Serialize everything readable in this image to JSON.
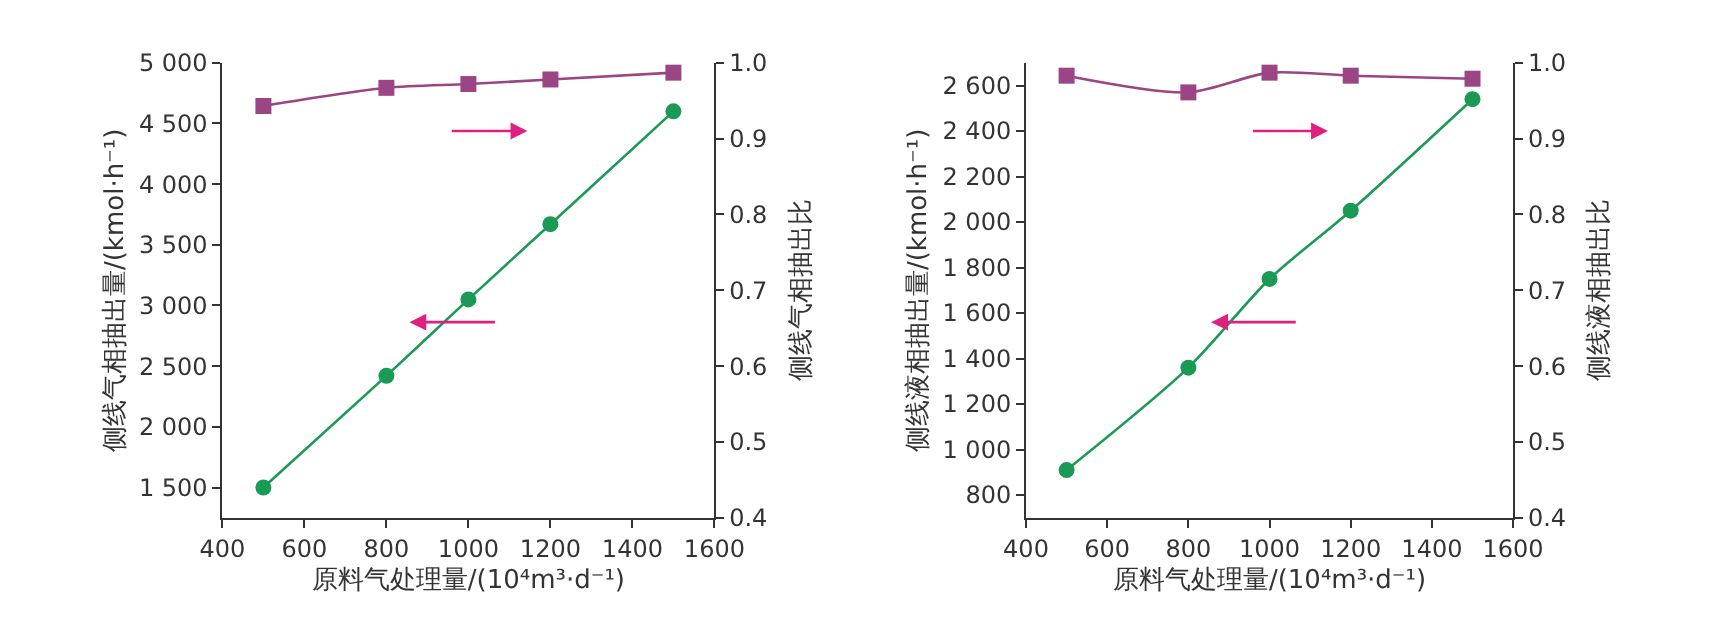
{
  "chart_data": [
    {
      "type": "line",
      "xlabel": "原料气处理量/(10⁴m³·d⁻¹)",
      "ylabel": "侧线气相抽出量/(kmol·h⁻¹)",
      "y2label": "侧线气相抽出比",
      "x": [
        500,
        800,
        1000,
        1200,
        1500
      ],
      "series": [
        {
          "color": "#1a9a55",
          "marker": "circle",
          "values": [
            1500,
            2420,
            3050,
            3670,
            4600
          ]
        },
        {
          "color": "#9b4585",
          "marker": "square",
          "axis": "y2",
          "values": [
            0.943,
            0.967,
            0.972,
            0.978,
            0.987
          ]
        }
      ],
      "xlim": [
        400,
        1600
      ],
      "xticks": [
        400,
        600,
        800,
        1000,
        1200,
        1400,
        1600
      ],
      "ylim": [
        1250,
        5000
      ],
      "yticks": [
        {
          "value": 1500,
          "label": "1 500"
        },
        {
          "value": 2000,
          "label": "2 000"
        },
        {
          "value": 2500,
          "label": "2 500"
        },
        {
          "value": 3000,
          "label": "3 000"
        },
        {
          "value": 3500,
          "label": "3 500"
        },
        {
          "value": 4000,
          "label": "4 000"
        },
        {
          "value": 4500,
          "label": "4 500"
        },
        {
          "value": 5000,
          "label": "5 000"
        }
      ],
      "y2lim": [
        0.4,
        1.0
      ],
      "y2ticks": [
        0.4,
        0.5,
        0.6,
        0.7,
        0.8,
        0.9,
        {
          "value": 1.0,
          "label": "1.0"
        }
      ]
    },
    {
      "type": "line",
      "xlabel": "原料气处理量/(10⁴m³·d⁻¹)",
      "ylabel": "侧线液相抽出量/(kmol·h⁻¹)",
      "y2label": "侧线液相抽出比",
      "x": [
        500,
        800,
        1000,
        1200,
        1500
      ],
      "series": [
        {
          "color": "#1a9a55",
          "marker": "circle",
          "values": [
            910,
            1360,
            1750,
            2050,
            2540
          ]
        },
        {
          "color": "#9b4585",
          "marker": "square",
          "axis": "y2",
          "values": [
            0.983,
            0.961,
            0.987,
            0.983,
            0.979
          ]
        }
      ],
      "xlim": [
        400,
        1600
      ],
      "xticks": [
        400,
        600,
        800,
        1000,
        1200,
        1400,
        1600
      ],
      "ylim": [
        700,
        2700
      ],
      "yticks": [
        800,
        {
          "value": 1000,
          "label": "1 000"
        },
        {
          "value": 1200,
          "label": "1 200"
        },
        {
          "value": 1400,
          "label": "1 400"
        },
        {
          "value": 1600,
          "label": "1 600"
        },
        {
          "value": 1800,
          "label": "1 800"
        },
        {
          "value": 2000,
          "label": "2 000"
        },
        {
          "value": 2200,
          "label": "2 200"
        },
        {
          "value": 2400,
          "label": "2 400"
        },
        {
          "value": 2600,
          "label": "2 600"
        }
      ],
      "y2lim": [
        0.4,
        1.0
      ],
      "y2ticks": [
        0.4,
        0.5,
        0.6,
        0.7,
        0.8,
        0.9,
        {
          "value": 1.0,
          "label": "1.0"
        }
      ]
    }
  ]
}
